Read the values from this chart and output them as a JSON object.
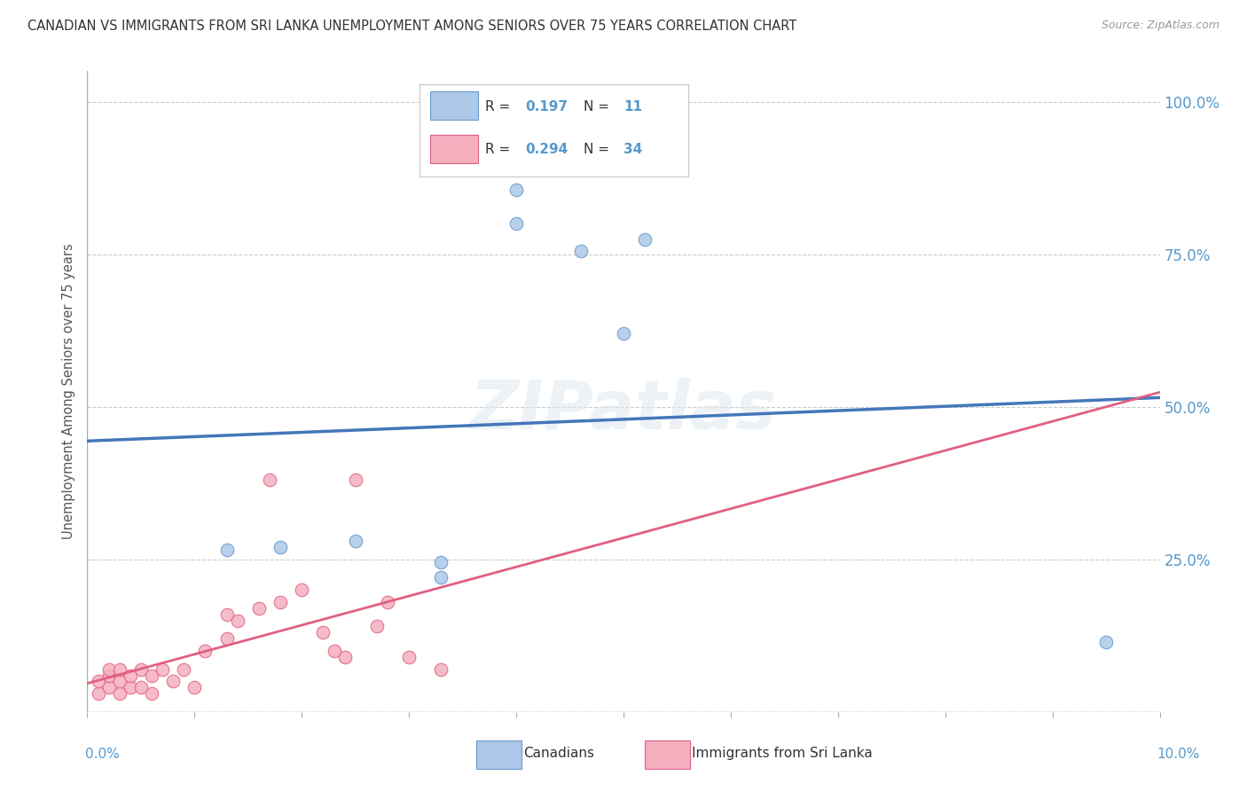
{
  "title": "CANADIAN VS IMMIGRANTS FROM SRI LANKA UNEMPLOYMENT AMONG SENIORS OVER 75 YEARS CORRELATION CHART",
  "source": "Source: ZipAtlas.com",
  "ylabel": "Unemployment Among Seniors over 75 years",
  "legend_r_blue": "R = ",
  "legend_r_blue_val": "0.197",
  "legend_n_blue": "N = ",
  "legend_n_blue_val": "11",
  "legend_r_pink": "R = ",
  "legend_r_pink_val": "0.294",
  "legend_n_pink": "N = ",
  "legend_n_pink_val": "34",
  "legend_label_blue": "Canadians",
  "legend_label_pink": "Immigrants from Sri Lanka",
  "blue_fill": "#adc8e8",
  "blue_edge": "#6699cc",
  "pink_fill": "#f5b0c0",
  "pink_edge": "#e06080",
  "blue_line": "#4477bb",
  "pink_line": "#e06080",
  "axis_color": "#5599cc",
  "watermark": "ZIPatlas",
  "canadians_x": [
    0.013,
    0.018,
    0.025,
    0.033,
    0.033,
    0.04,
    0.04,
    0.046,
    0.05,
    0.052,
    0.095
  ],
  "canadians_y": [
    0.265,
    0.27,
    0.28,
    0.245,
    0.22,
    0.855,
    0.8,
    0.755,
    0.62,
    0.775,
    0.115
  ],
  "srilanka_x": [
    0.001,
    0.001,
    0.002,
    0.002,
    0.002,
    0.003,
    0.003,
    0.003,
    0.004,
    0.004,
    0.005,
    0.005,
    0.006,
    0.006,
    0.007,
    0.008,
    0.009,
    0.01,
    0.011,
    0.013,
    0.013,
    0.014,
    0.016,
    0.017,
    0.018,
    0.02,
    0.022,
    0.023,
    0.024,
    0.025,
    0.027,
    0.028,
    0.03,
    0.033
  ],
  "srilanka_y": [
    0.03,
    0.05,
    0.04,
    0.06,
    0.07,
    0.03,
    0.05,
    0.07,
    0.04,
    0.06,
    0.04,
    0.07,
    0.03,
    0.06,
    0.07,
    0.05,
    0.07,
    0.04,
    0.1,
    0.12,
    0.16,
    0.15,
    0.17,
    0.38,
    0.18,
    0.2,
    0.13,
    0.1,
    0.09,
    0.38,
    0.14,
    0.18,
    0.09,
    0.07
  ],
  "xmin": 0.0,
  "xmax": 0.1,
  "ymin": 0.0,
  "ymax": 1.05,
  "yticks": [
    0.0,
    0.25,
    0.5,
    0.75,
    1.0
  ],
  "ytick_labels": [
    "",
    "25.0%",
    "50.0%",
    "75.0%",
    "100.0%"
  ]
}
